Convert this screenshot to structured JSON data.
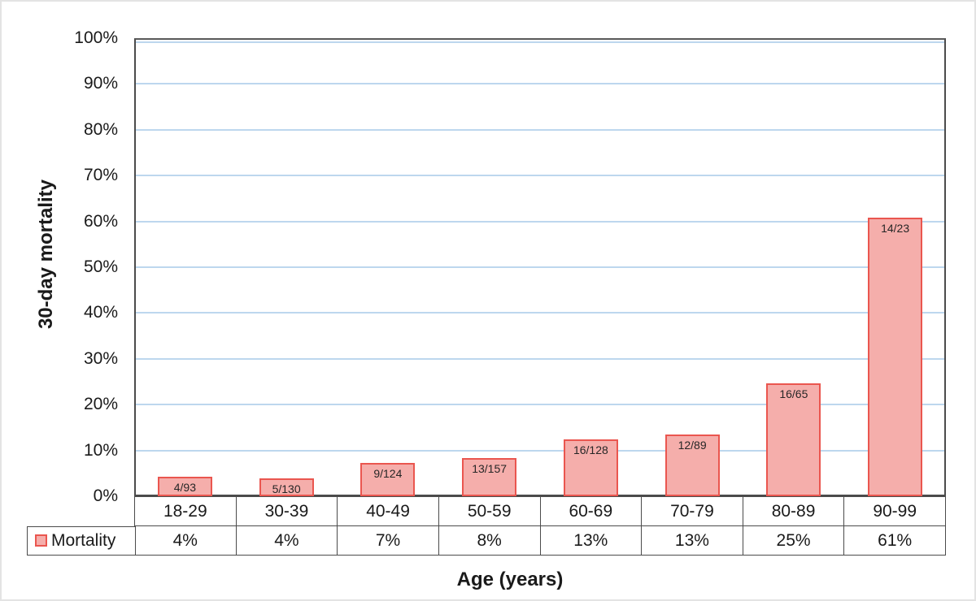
{
  "chart_data": {
    "type": "bar",
    "title": "",
    "xlabel": "Age (years)",
    "ylabel": "30-day mortality",
    "categories": [
      "18-29",
      "30-39",
      "40-49",
      "50-59",
      "60-69",
      "70-79",
      "80-89",
      "90-99"
    ],
    "series": [
      {
        "name": "Mortality",
        "values_pct": [
          4.3,
          3.85,
          7.26,
          8.28,
          12.5,
          13.48,
          24.62,
          60.87
        ],
        "bar_labels": [
          "4/93",
          "5/130",
          "9/124",
          "13/157",
          "16/128",
          "12/89",
          "16/65",
          "14/23"
        ],
        "table_values": [
          "4%",
          "4%",
          "7%",
          "8%",
          "13%",
          "13%",
          "25%",
          "61%"
        ]
      }
    ],
    "ylim": [
      0,
      100
    ],
    "y_ticks": [
      "0%",
      "10%",
      "20%",
      "30%",
      "40%",
      "50%",
      "60%",
      "70%",
      "80%",
      "90%",
      "100%"
    ],
    "grid": true,
    "legend_position": "data-table-left",
    "colors": {
      "bar_fill": "#f5aeab",
      "bar_border": "#ea564f",
      "gridline": "#bdd7ee"
    }
  }
}
